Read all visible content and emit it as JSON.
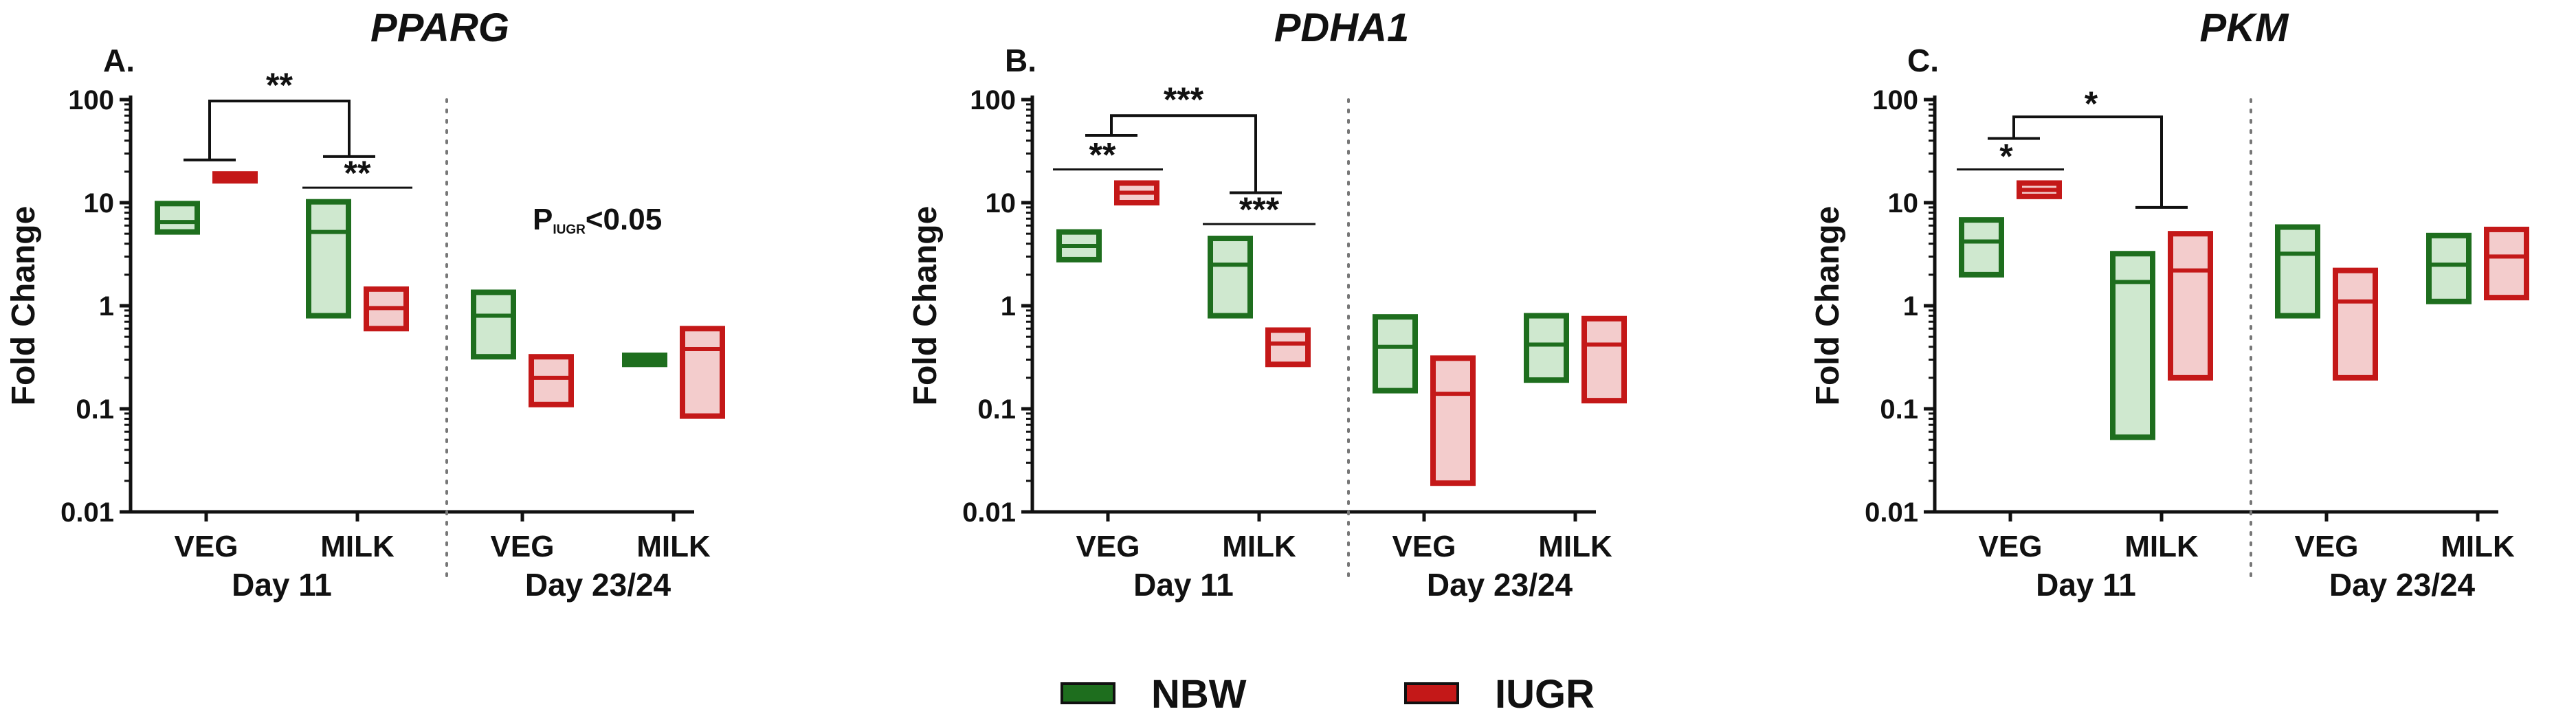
{
  "colors": {
    "NBW": "#1e6e1e",
    "IUGR": "#c41818",
    "NBW_fill": "#cfe8cf",
    "IUGR_fill": "#f3cccc"
  },
  "legend": [
    {
      "key": "NBW",
      "label": "NBW",
      "color": "#1e6e1e"
    },
    {
      "key": "IUGR",
      "label": "IUGR",
      "color": "#c41818"
    }
  ],
  "chart_data": [
    {
      "type": "floating-bar",
      "panel_label": "A.",
      "title": "PPARG",
      "ylabel": "Fold Change",
      "yscale": "log",
      "ylim": [
        0.01,
        100
      ],
      "yticks": [
        "100",
        "10",
        "1",
        "0.1",
        "0.01"
      ],
      "categories": [
        "VEG",
        "MILK",
        "VEG",
        "MILK"
      ],
      "days": [
        "Day 11",
        "Day 23/24"
      ],
      "series": [
        {
          "name": "NBW",
          "boxes": [
            {
              "min": 5.2,
              "mean": 6.5,
              "max": 9.8
            },
            {
              "min": 0.8,
              "mean": 5.2,
              "max": 10.2
            },
            {
              "min": 0.32,
              "mean": 0.8,
              "max": 1.35
            },
            {
              "min": 0.27,
              "mean": 0.3,
              "max": 0.33
            }
          ]
        },
        {
          "name": "IUGR",
          "boxes": [
            {
              "min": 17.5,
              "mean": 18.2,
              "max": 19
            },
            {
              "min": 0.6,
              "mean": 0.95,
              "max": 1.45
            },
            {
              "min": 0.11,
              "mean": 0.2,
              "max": 0.32
            },
            {
              "min": 0.085,
              "mean": 0.38,
              "max": 0.6
            }
          ]
        }
      ],
      "annotation": {
        "text": "P",
        "sub": "IUGR",
        "rest": "<0.05"
      },
      "significance": [
        {
          "text": "**"
        },
        {
          "text": "**"
        }
      ]
    },
    {
      "type": "floating-bar",
      "panel_label": "B.",
      "title": "PDHA1",
      "ylabel": "Fold Change",
      "yscale": "log",
      "ylim": [
        0.01,
        100
      ],
      "yticks": [
        "100",
        "10",
        "1",
        "0.1",
        "0.01"
      ],
      "categories": [
        "VEG",
        "MILK",
        "VEG",
        "MILK"
      ],
      "days": [
        "Day 11",
        "Day 23/24"
      ],
      "series": [
        {
          "name": "NBW",
          "boxes": [
            {
              "min": 2.8,
              "mean": 3.8,
              "max": 5.2
            },
            {
              "min": 0.8,
              "mean": 2.5,
              "max": 4.5
            },
            {
              "min": 0.15,
              "mean": 0.4,
              "max": 0.78
            },
            {
              "min": 0.19,
              "mean": 0.42,
              "max": 0.8
            }
          ]
        },
        {
          "name": "IUGR",
          "boxes": [
            {
              "min": 10,
              "mean": 12.5,
              "max": 15.5
            },
            {
              "min": 0.27,
              "mean": 0.43,
              "max": 0.58
            },
            {
              "min": 0.019,
              "mean": 0.14,
              "max": 0.31
            },
            {
              "min": 0.12,
              "mean": 0.42,
              "max": 0.75
            }
          ]
        }
      ],
      "significance": [
        {
          "text": "**"
        },
        {
          "text": "***"
        },
        {
          "text": "***"
        }
      ]
    },
    {
      "type": "floating-bar",
      "panel_label": "C.",
      "title": "PKM",
      "ylabel": "Fold Change",
      "yscale": "log",
      "ylim": [
        0.01,
        100
      ],
      "yticks": [
        "100",
        "10",
        "1",
        "0.1",
        "0.01"
      ],
      "categories": [
        "VEG",
        "MILK",
        "VEG",
        "MILK"
      ],
      "days": [
        "Day 11",
        "Day 23/24"
      ],
      "series": [
        {
          "name": "NBW",
          "boxes": [
            {
              "min": 2,
              "mean": 4.2,
              "max": 6.8
            },
            {
              "min": 0.053,
              "mean": 1.7,
              "max": 3.2
            },
            {
              "min": 0.8,
              "mean": 3.2,
              "max": 5.8
            },
            {
              "min": 1.1,
              "mean": 2.5,
              "max": 4.8
            }
          ]
        },
        {
          "name": "IUGR",
          "boxes": [
            {
              "min": 11.5,
              "mean": 13.3,
              "max": 15.5
            },
            {
              "min": 0.2,
              "mean": 2.2,
              "max": 5
            },
            {
              "min": 0.2,
              "mean": 1.1,
              "max": 2.2
            },
            {
              "min": 1.2,
              "mean": 3,
              "max": 5.5
            }
          ]
        }
      ],
      "significance": [
        {
          "text": "*"
        },
        {
          "text": "*"
        }
      ]
    }
  ]
}
